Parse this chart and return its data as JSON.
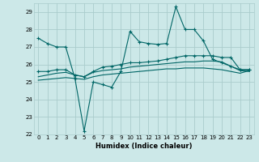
{
  "xlabel": "Humidex (Indice chaleur)",
  "ylabel": "",
  "background_color": "#cce8e8",
  "grid_color": "#aacccc",
  "line_color": "#006666",
  "xlim": [
    -0.5,
    23.5
  ],
  "ylim": [
    22,
    29.5
  ],
  "yticks": [
    22,
    23,
    24,
    25,
    26,
    27,
    28,
    29
  ],
  "xticks": [
    0,
    1,
    2,
    3,
    4,
    5,
    6,
    7,
    8,
    9,
    10,
    11,
    12,
    13,
    14,
    15,
    16,
    17,
    18,
    19,
    20,
    21,
    22,
    23
  ],
  "series1_x": [
    0,
    1,
    2,
    3,
    4,
    5,
    6,
    7,
    8,
    9,
    10,
    11,
    12,
    13,
    14,
    15,
    16,
    17,
    18,
    19,
    20,
    21,
    22,
    23
  ],
  "series1_y": [
    27.5,
    27.2,
    27.0,
    27.0,
    25.2,
    22.2,
    25.0,
    24.85,
    24.7,
    25.6,
    27.9,
    27.3,
    27.2,
    27.15,
    27.2,
    29.3,
    28.0,
    28.0,
    27.35,
    26.3,
    26.1,
    25.9,
    25.7,
    25.7
  ],
  "series2_x": [
    0,
    1,
    2,
    3,
    4,
    5,
    6,
    7,
    8,
    9,
    10,
    11,
    12,
    13,
    14,
    15,
    16,
    17,
    18,
    19,
    20,
    21,
    22,
    23
  ],
  "series2_y": [
    25.6,
    25.6,
    25.7,
    25.7,
    25.4,
    25.3,
    25.6,
    25.85,
    25.9,
    26.0,
    26.1,
    26.1,
    26.15,
    26.2,
    26.3,
    26.4,
    26.5,
    26.5,
    26.5,
    26.5,
    26.4,
    26.4,
    25.7,
    25.7
  ],
  "series3_x": [
    0,
    1,
    2,
    3,
    4,
    5,
    6,
    7,
    8,
    9,
    10,
    11,
    12,
    13,
    14,
    15,
    16,
    17,
    18,
    19,
    20,
    21,
    22,
    23
  ],
  "series3_y": [
    25.3,
    25.4,
    25.5,
    25.55,
    25.4,
    25.3,
    25.55,
    25.65,
    25.7,
    25.75,
    25.85,
    25.9,
    25.95,
    26.0,
    26.05,
    26.1,
    26.15,
    26.15,
    26.2,
    26.2,
    26.15,
    25.9,
    25.65,
    25.6
  ],
  "series4_x": [
    0,
    1,
    2,
    3,
    4,
    5,
    6,
    7,
    8,
    9,
    10,
    11,
    12,
    13,
    14,
    15,
    16,
    17,
    18,
    19,
    20,
    21,
    22,
    23
  ],
  "series4_y": [
    25.1,
    25.15,
    25.2,
    25.25,
    25.2,
    25.15,
    25.3,
    25.4,
    25.45,
    25.5,
    25.55,
    25.6,
    25.65,
    25.7,
    25.75,
    25.75,
    25.8,
    25.8,
    25.8,
    25.75,
    25.7,
    25.6,
    25.5,
    25.65
  ]
}
